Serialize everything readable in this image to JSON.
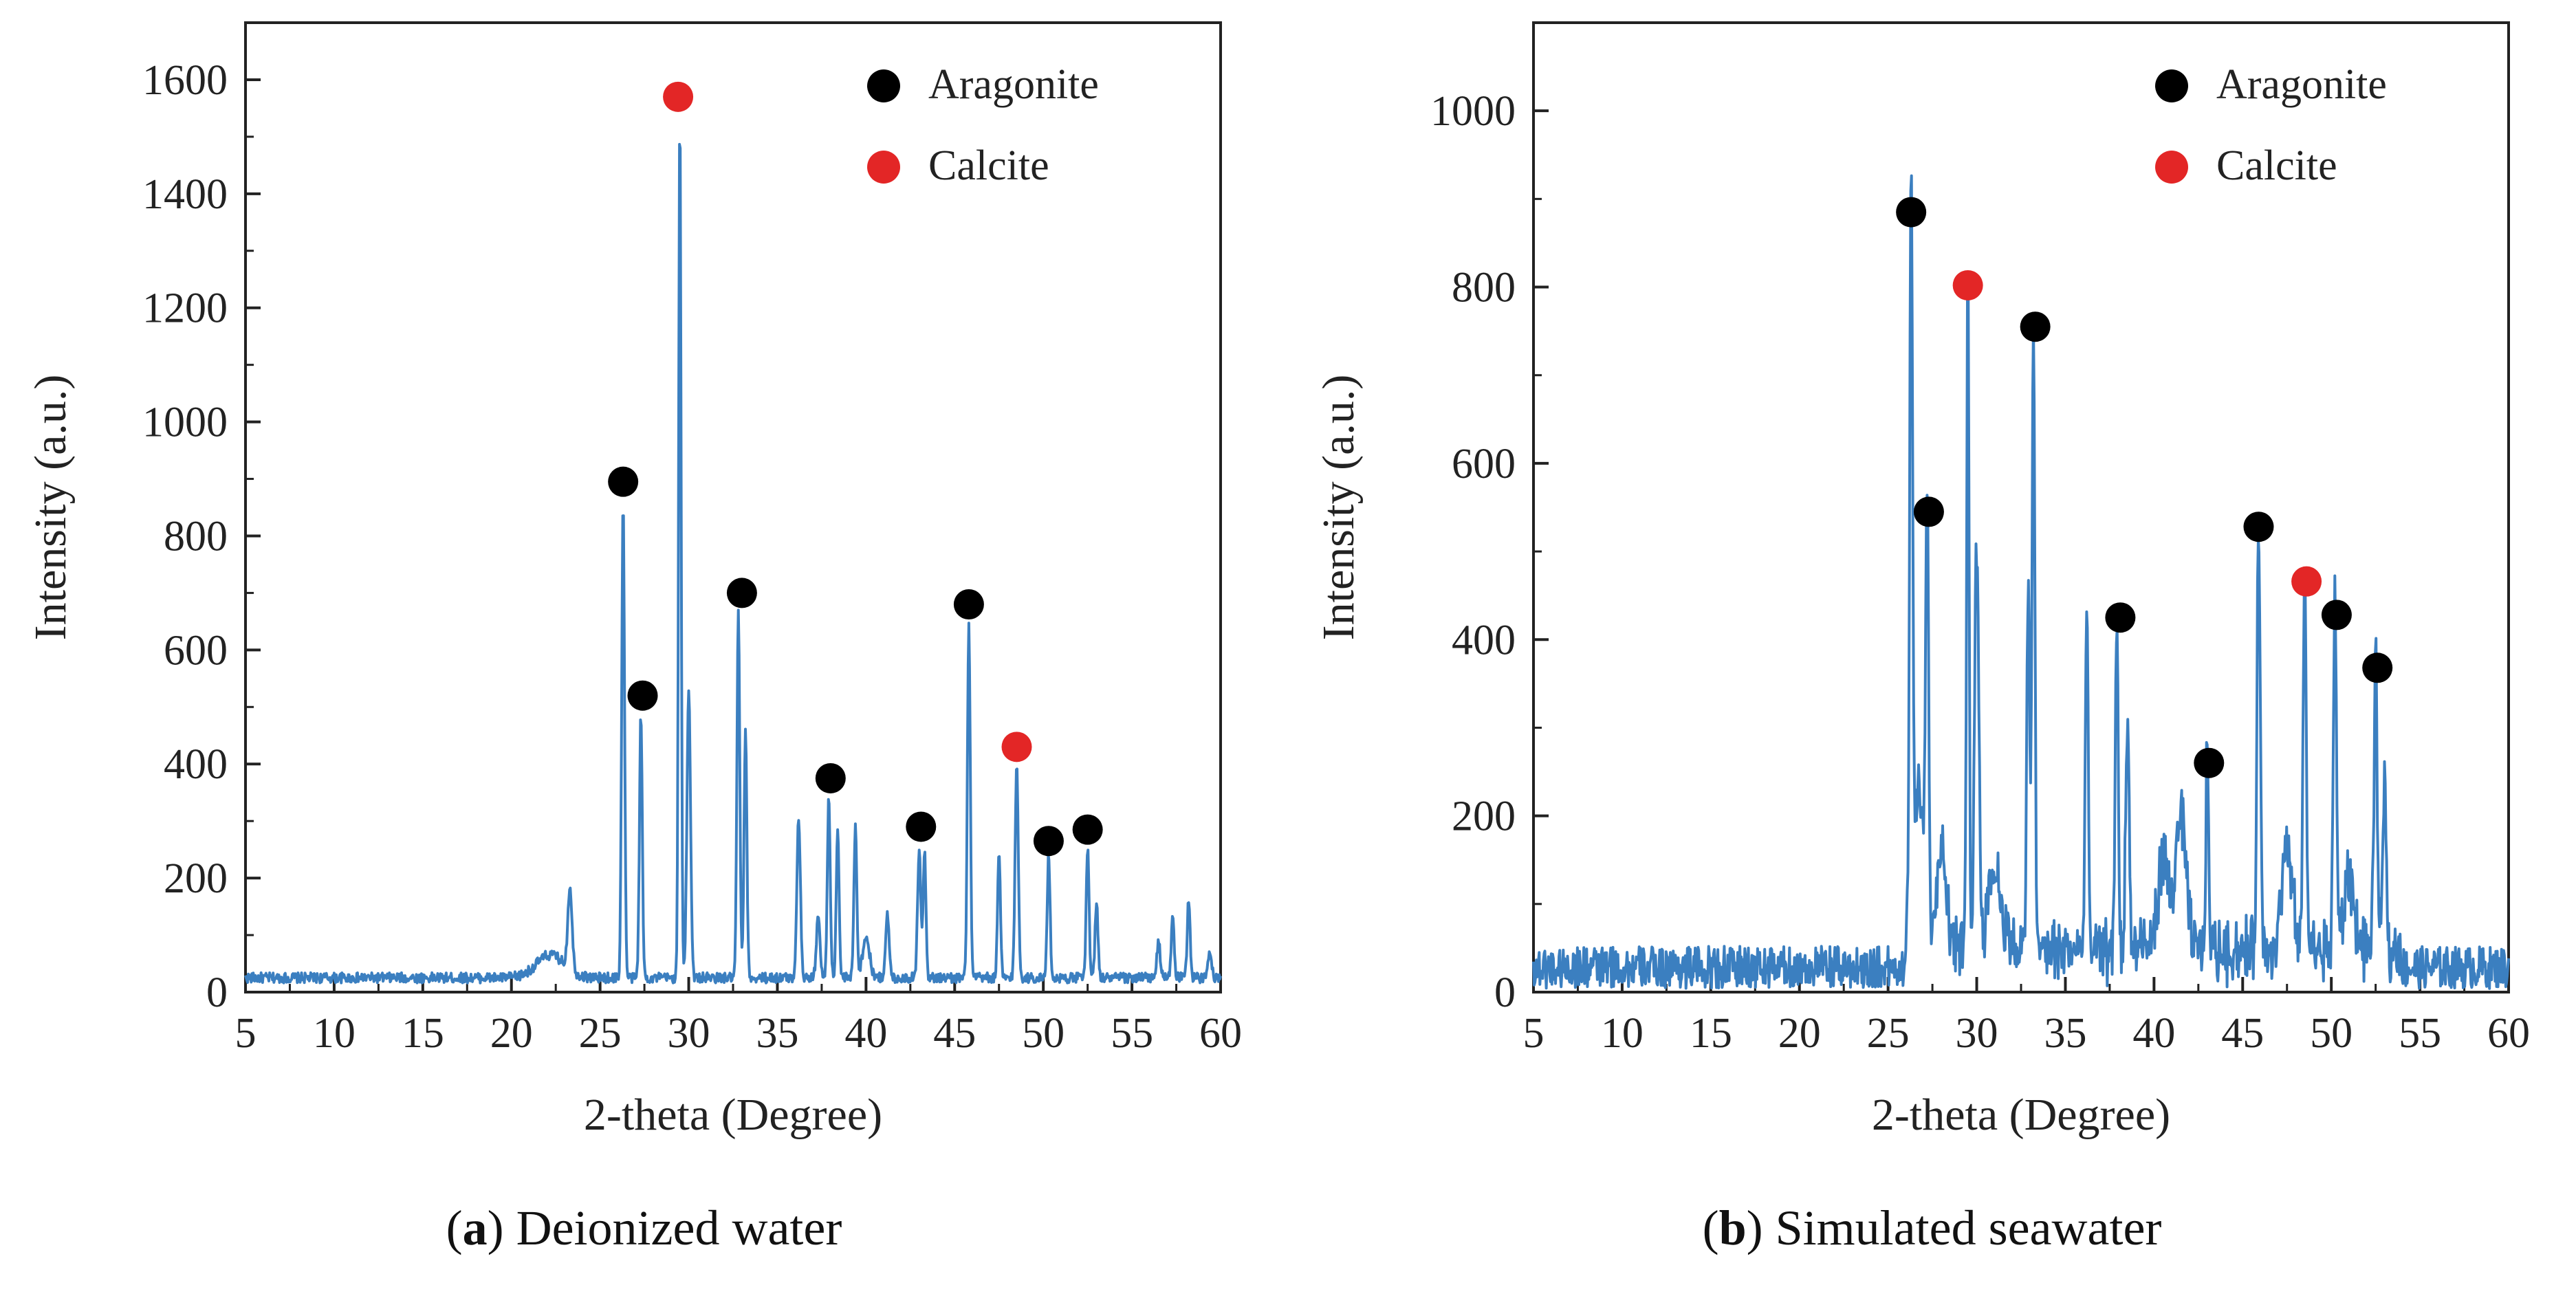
{
  "chart_data": [
    {
      "type": "line",
      "panel_label": "a",
      "caption": "Deionized water",
      "xlabel": "2-theta (Degree)",
      "ylabel": "Intensity (a.u.)",
      "xlim": [
        5,
        60
      ],
      "ylim": [
        0,
        1700
      ],
      "x_ticks": [
        5,
        10,
        15,
        20,
        25,
        30,
        35,
        40,
        45,
        50,
        55,
        60
      ],
      "y_ticks": [
        0,
        200,
        400,
        600,
        800,
        1000,
        1200,
        1400,
        1600
      ],
      "line_color": "#3b7fc0",
      "baseline": 25,
      "noise": 9,
      "peaks": [
        {
          "x": 22.2,
          "y": 40,
          "w": 0.8
        },
        {
          "x": 23.3,
          "y": 145,
          "w": 0.12
        },
        {
          "x": 26.3,
          "y": 835,
          "w": 0.08
        },
        {
          "x": 27.3,
          "y": 460,
          "w": 0.08
        },
        {
          "x": 29.5,
          "y": 1515,
          "w": 0.07
        },
        {
          "x": 30.0,
          "y": 510,
          "w": 0.1
        },
        {
          "x": 32.8,
          "y": 640,
          "w": 0.08
        },
        {
          "x": 33.2,
          "y": 430,
          "w": 0.08
        },
        {
          "x": 36.2,
          "y": 280,
          "w": 0.1
        },
        {
          "x": 37.3,
          "y": 110,
          "w": 0.1
        },
        {
          "x": 37.9,
          "y": 320,
          "w": 0.08
        },
        {
          "x": 38.4,
          "y": 260,
          "w": 0.08
        },
        {
          "x": 39.4,
          "y": 270,
          "w": 0.08
        },
        {
          "x": 40.0,
          "y": 70,
          "w": 0.2
        },
        {
          "x": 41.2,
          "y": 110,
          "w": 0.1
        },
        {
          "x": 43.0,
          "y": 230,
          "w": 0.09
        },
        {
          "x": 43.3,
          "y": 220,
          "w": 0.08
        },
        {
          "x": 45.8,
          "y": 625,
          "w": 0.08
        },
        {
          "x": 47.5,
          "y": 215,
          "w": 0.08
        },
        {
          "x": 48.5,
          "y": 370,
          "w": 0.09
        },
        {
          "x": 50.3,
          "y": 215,
          "w": 0.08
        },
        {
          "x": 52.5,
          "y": 230,
          "w": 0.08
        },
        {
          "x": 53.0,
          "y": 135,
          "w": 0.08
        },
        {
          "x": 56.5,
          "y": 60,
          "w": 0.1
        },
        {
          "x": 57.3,
          "y": 110,
          "w": 0.08
        },
        {
          "x": 58.2,
          "y": 140,
          "w": 0.08
        },
        {
          "x": 59.4,
          "y": 50,
          "w": 0.1
        }
      ],
      "markers": [
        {
          "phase": "Aragonite",
          "x": 26.3,
          "y": 895
        },
        {
          "phase": "Aragonite",
          "x": 27.4,
          "y": 520
        },
        {
          "phase": "Calcite",
          "x": 29.4,
          "y": 1570
        },
        {
          "phase": "Aragonite",
          "x": 33.0,
          "y": 700
        },
        {
          "phase": "Aragonite",
          "x": 38.0,
          "y": 375
        },
        {
          "phase": "Aragonite",
          "x": 43.1,
          "y": 290
        },
        {
          "phase": "Aragonite",
          "x": 45.8,
          "y": 680
        },
        {
          "phase": "Calcite",
          "x": 48.5,
          "y": 430
        },
        {
          "phase": "Aragonite",
          "x": 50.3,
          "y": 265
        },
        {
          "phase": "Aragonite",
          "x": 52.5,
          "y": 285
        }
      ],
      "legend": [
        {
          "label": "Aragonite",
          "color": "#000000"
        },
        {
          "label": "Calcite",
          "color": "#e32626"
        }
      ],
      "legend_position": "top-right"
    },
    {
      "type": "line",
      "panel_label": "b",
      "caption": "Simulated seawater",
      "xlabel": "2-theta (Degree)",
      "ylabel": "Intensity (a.u.)",
      "xlim": [
        5,
        60
      ],
      "ylim": [
        0,
        1100
      ],
      "x_ticks": [
        5,
        10,
        15,
        20,
        25,
        30,
        35,
        40,
        45,
        50,
        55,
        60
      ],
      "y_ticks": [
        0,
        200,
        400,
        600,
        800,
        1000
      ],
      "line_color": "#3b7fc0",
      "baseline": 28,
      "noise": 24,
      "peaks": [
        {
          "x": 26.3,
          "y": 845,
          "w": 0.08
        },
        {
          "x": 26.7,
          "y": 180,
          "w": 0.3
        },
        {
          "x": 27.2,
          "y": 510,
          "w": 0.08
        },
        {
          "x": 28.0,
          "y": 110,
          "w": 0.3
        },
        {
          "x": 29.5,
          "y": 770,
          "w": 0.07
        },
        {
          "x": 30.0,
          "y": 460,
          "w": 0.12
        },
        {
          "x": 31.0,
          "y": 90,
          "w": 0.4
        },
        {
          "x": 32.9,
          "y": 410,
          "w": 0.08
        },
        {
          "x": 33.2,
          "y": 720,
          "w": 0.08
        },
        {
          "x": 36.2,
          "y": 385,
          "w": 0.08
        },
        {
          "x": 37.9,
          "y": 385,
          "w": 0.08
        },
        {
          "x": 38.5,
          "y": 250,
          "w": 0.1
        },
        {
          "x": 40.5,
          "y": 100,
          "w": 0.3
        },
        {
          "x": 41.5,
          "y": 150,
          "w": 0.3
        },
        {
          "x": 43.0,
          "y": 225,
          "w": 0.08
        },
        {
          "x": 45.9,
          "y": 490,
          "w": 0.09
        },
        {
          "x": 47.5,
          "y": 110,
          "w": 0.3
        },
        {
          "x": 48.5,
          "y": 425,
          "w": 0.09
        },
        {
          "x": 50.2,
          "y": 395,
          "w": 0.09
        },
        {
          "x": 51.0,
          "y": 80,
          "w": 0.3
        },
        {
          "x": 52.5,
          "y": 330,
          "w": 0.09
        },
        {
          "x": 53.0,
          "y": 185,
          "w": 0.1
        }
      ],
      "markers": [
        {
          "phase": "Aragonite",
          "x": 26.3,
          "y": 885
        },
        {
          "phase": "Aragonite",
          "x": 27.3,
          "y": 545
        },
        {
          "phase": "Calcite",
          "x": 29.5,
          "y": 802
        },
        {
          "phase": "Aragonite",
          "x": 33.3,
          "y": 755
        },
        {
          "phase": "Aragonite",
          "x": 38.1,
          "y": 425
        },
        {
          "phase": "Aragonite",
          "x": 43.1,
          "y": 260
        },
        {
          "phase": "Aragonite",
          "x": 45.9,
          "y": 528
        },
        {
          "phase": "Calcite",
          "x": 48.6,
          "y": 466
        },
        {
          "phase": "Aragonite",
          "x": 50.3,
          "y": 428
        },
        {
          "phase": "Aragonite",
          "x": 52.6,
          "y": 368
        }
      ],
      "legend": [
        {
          "label": "Aragonite",
          "color": "#000000"
        },
        {
          "label": "Calcite",
          "color": "#e32626"
        }
      ],
      "legend_position": "top-right"
    }
  ],
  "captions": [
    {
      "letter": "a",
      "text": "Deionized water"
    },
    {
      "letter": "b",
      "text": "Simulated seawater"
    }
  ]
}
